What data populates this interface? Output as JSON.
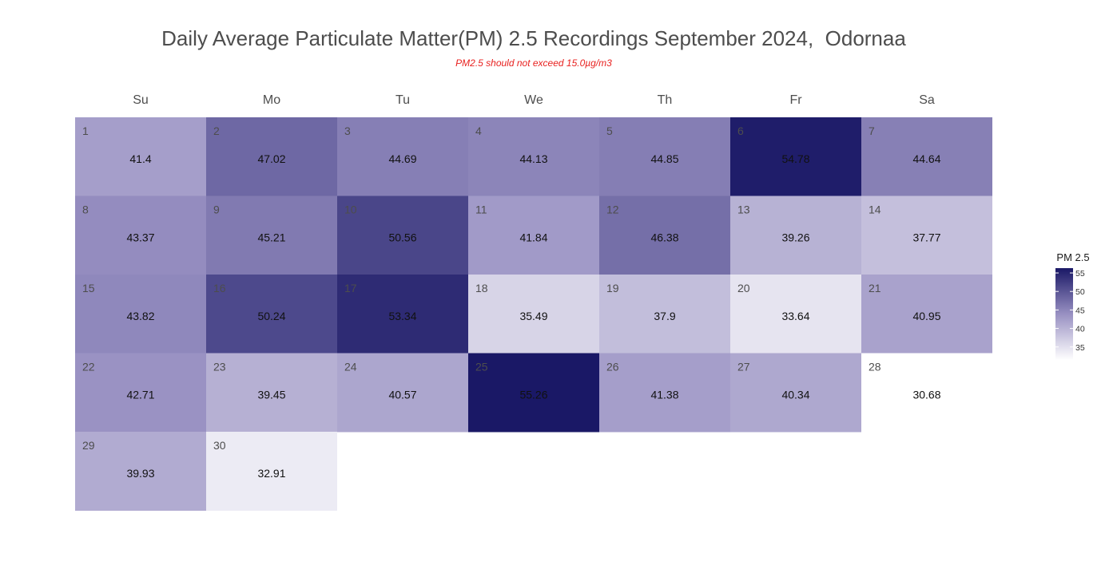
{
  "title": "Daily Average Particulate Matter(PM) 2.5 Recordings September 2024,  Odornaa",
  "subtitle": "PM2.5 should not exceed 15.0µg/m3",
  "chart_data": {
    "type": "heatmap",
    "title": "Daily Average Particulate Matter(PM) 2.5 Recordings September 2024,  Odornaa",
    "subtitle": "PM2.5 should not exceed 15.0µg/m3",
    "weekdays": [
      "Su",
      "Mo",
      "Tu",
      "We",
      "Th",
      "Fr",
      "Sa"
    ],
    "first_weekday_index": 0,
    "days": [
      {
        "day": 1,
        "value": 41.4
      },
      {
        "day": 2,
        "value": 47.02
      },
      {
        "day": 3,
        "value": 44.69
      },
      {
        "day": 4,
        "value": 44.13
      },
      {
        "day": 5,
        "value": 44.85
      },
      {
        "day": 6,
        "value": 54.78
      },
      {
        "day": 7,
        "value": 44.64
      },
      {
        "day": 8,
        "value": 43.37
      },
      {
        "day": 9,
        "value": 45.21
      },
      {
        "day": 10,
        "value": 50.56
      },
      {
        "day": 11,
        "value": 41.84
      },
      {
        "day": 12,
        "value": 46.38
      },
      {
        "day": 13,
        "value": 39.26
      },
      {
        "day": 14,
        "value": 37.77
      },
      {
        "day": 15,
        "value": 43.82
      },
      {
        "day": 16,
        "value": 50.24
      },
      {
        "day": 17,
        "value": 53.34
      },
      {
        "day": 18,
        "value": 35.49
      },
      {
        "day": 19,
        "value": 37.9
      },
      {
        "day": 20,
        "value": 33.64
      },
      {
        "day": 21,
        "value": 40.95
      },
      {
        "day": 22,
        "value": 42.71
      },
      {
        "day": 23,
        "value": 39.45
      },
      {
        "day": 24,
        "value": 40.57
      },
      {
        "day": 25,
        "value": 55.26
      },
      {
        "day": 26,
        "value": 41.38
      },
      {
        "day": 27,
        "value": 40.34
      },
      {
        "day": 28,
        "value": 30.68
      },
      {
        "day": 29,
        "value": 39.93
      },
      {
        "day": 30,
        "value": 32.91
      }
    ],
    "legend": {
      "title": "PM 2.5",
      "ticks": [
        35,
        40,
        45,
        50,
        55
      ],
      "range": [
        30.68,
        55.26
      ],
      "colors": [
        "#ffffff",
        "#1a1866"
      ],
      "position": "right"
    }
  }
}
